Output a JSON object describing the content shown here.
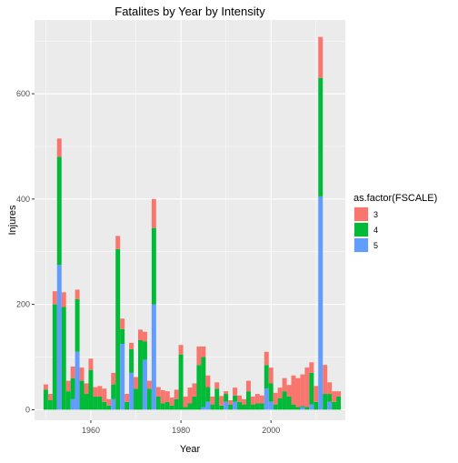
{
  "chart_data": {
    "type": "bar",
    "stacked": true,
    "title": "Fatalites by Year by Intensity",
    "xlabel": "Year",
    "ylabel": "Injures",
    "xlim": [
      1947.5,
      2016.5
    ],
    "ylim": [
      -20,
      740
    ],
    "x_ticks": [
      1960,
      1980,
      2000
    ],
    "y_ticks": [
      0,
      200,
      400,
      600
    ],
    "grid": true,
    "legend": {
      "title": "as.factor(FSCALE)",
      "position": "right",
      "entries": [
        "3",
        "4",
        "5"
      ]
    },
    "colors": {
      "3": "#F8766D",
      "4": "#00BA38",
      "5": "#619CFF"
    },
    "years": [
      1950,
      1951,
      1952,
      1953,
      1954,
      1955,
      1956,
      1957,
      1958,
      1959,
      1960,
      1961,
      1962,
      1963,
      1964,
      1965,
      1966,
      1967,
      1968,
      1969,
      1970,
      1971,
      1972,
      1973,
      1974,
      1975,
      1976,
      1977,
      1978,
      1979,
      1980,
      1981,
      1982,
      1983,
      1984,
      1985,
      1986,
      1987,
      1988,
      1989,
      1990,
      1991,
      1992,
      1993,
      1994,
      1995,
      1996,
      1997,
      1998,
      1999,
      2000,
      2001,
      2002,
      2003,
      2004,
      2005,
      2006,
      2007,
      2008,
      2009,
      2010,
      2011,
      2012,
      2013,
      2014,
      2015
    ],
    "series": [
      {
        "name": "3",
        "values": [
          10,
          12,
          25,
          35,
          28,
          20,
          22,
          18,
          25,
          20,
          22,
          18,
          20,
          25,
          12,
          22,
          25,
          20,
          15,
          12,
          22,
          20,
          18,
          15,
          55,
          18,
          25,
          20,
          15,
          18,
          18,
          20,
          30,
          25,
          35,
          20,
          22,
          15,
          12,
          18,
          5,
          8,
          15,
          12,
          10,
          20,
          15,
          18,
          15,
          25,
          30,
          22,
          20,
          25,
          22,
          55,
          55,
          60,
          75,
          20,
          30,
          78,
          55,
          22,
          20,
          10
        ]
      },
      {
        "name": "4",
        "values": [
          38,
          18,
          200,
          205,
          195,
          35,
          40,
          100,
          55,
          30,
          75,
          25,
          25,
          15,
          8,
          28,
          305,
          28,
          15,
          45,
          40,
          132,
          35,
          40,
          145,
          25,
          12,
          15,
          8,
          20,
          105,
          5,
          12,
          25,
          85,
          95,
          28,
          10,
          40,
          8,
          15,
          10,
          12,
          15,
          10,
          35,
          10,
          12,
          12,
          45,
          35,
          10,
          22,
          35,
          25,
          10,
          5,
          2,
          5,
          60,
          15,
          225,
          30,
          15,
          15,
          25
        ]
      },
      {
        "name": "5",
        "values": [
          0,
          0,
          0,
          275,
          0,
          0,
          20,
          110,
          0,
          0,
          0,
          0,
          0,
          0,
          0,
          20,
          0,
          125,
          0,
          70,
          0,
          0,
          95,
          0,
          200,
          0,
          0,
          0,
          0,
          0,
          0,
          0,
          0,
          0,
          0,
          5,
          15,
          0,
          0,
          0,
          15,
          0,
          15,
          0,
          0,
          0,
          0,
          0,
          0,
          40,
          15,
          0,
          0,
          0,
          0,
          0,
          0,
          5,
          0,
          10,
          0,
          405,
          0,
          15,
          0,
          0
        ]
      }
    ]
  }
}
